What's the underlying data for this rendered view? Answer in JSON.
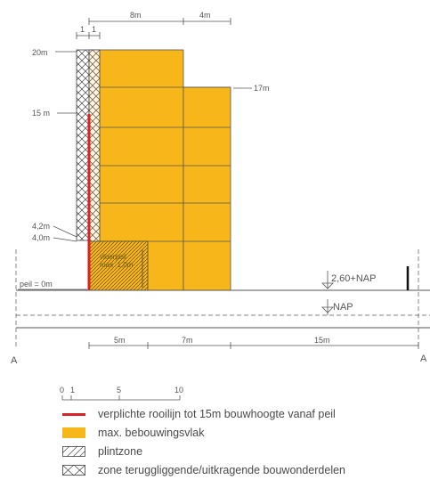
{
  "diagram": {
    "top_dims": [
      "8m",
      "4m"
    ],
    "small_dims": [
      "1",
      "1"
    ],
    "height_labels": {
      "h20": "20m",
      "h15": "15 m",
      "h17": "17m",
      "h42": "4,2m",
      "h40": "4,0m",
      "peil": "peil = 0m"
    },
    "vloerpeil": [
      "vloerpeil",
      "max. 1,0m"
    ],
    "nap_high": "2,60+NAP",
    "nap": "NAP",
    "bottom_dims": [
      "5m",
      "7m",
      "15m"
    ],
    "section_marks": [
      "A",
      "A"
    ]
  },
  "scale": {
    "ticks": [
      "0",
      "1",
      "5",
      "10"
    ]
  },
  "legend": {
    "items": [
      {
        "label": "verplichte rooilijn tot 15m bouwhoogte vanaf peil",
        "swatch": "red-line"
      },
      {
        "label": "max. bebouwingsvlak",
        "swatch": "yellow-fill"
      },
      {
        "label": "plintzone",
        "swatch": "hatch"
      },
      {
        "label": "zone teruggliggende/uitkragende bouwonderdelen",
        "swatch": "crosshatch"
      }
    ]
  },
  "colors": {
    "yellow": "#f7b71b",
    "red": "#d6232a",
    "line": "#555555"
  }
}
